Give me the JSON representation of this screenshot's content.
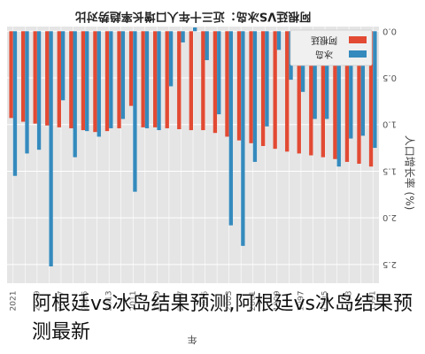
{
  "caption": "阿根廷vs冰岛结果预测,阿根廷vs冰岛结果预测最新",
  "chart_data": {
    "type": "bar",
    "title": "阿根廷VS冰岛：近三十年人口增长率趋势对比",
    "ylabel": "人口增长率 (%)",
    "xlabel": "年",
    "ylim": [
      -0.05,
      2.7
    ],
    "yticks": [
      0.0,
      0.5,
      1.0,
      1.5,
      2.0,
      2.5
    ],
    "ytick_labels": [
      "0.0",
      "0.5",
      "1.0",
      "1.5",
      "2.0",
      "2.5"
    ],
    "grid": true,
    "legend_position": "top-right",
    "background": "#e5e5e5",
    "categories": [
      "1991",
      "1992",
      "1993",
      "1994",
      "1995",
      "1996",
      "1997",
      "1998",
      "1999",
      "2000",
      "2001",
      "2002",
      "2003",
      "2004",
      "2005",
      "2006",
      "2007",
      "2008",
      "2009",
      "2010",
      "2011",
      "2012",
      "2013",
      "2014",
      "2015",
      "2016",
      "2017",
      "2018",
      "2019",
      "2020",
      "2021"
    ],
    "xtick_labels": [
      "1991",
      "1993",
      "1995",
      "1997",
      "1999",
      "2001",
      "2003",
      "2005",
      "2007",
      "2009",
      "2011",
      "2013",
      "2015",
      "2017",
      "2019",
      "2021"
    ],
    "series": [
      {
        "name": "阿根廷",
        "color": "#e24a33",
        "values": [
          1.45,
          1.42,
          1.4,
          1.37,
          1.35,
          1.33,
          1.31,
          1.29,
          1.26,
          1.23,
          1.2,
          1.17,
          1.13,
          1.09,
          1.06,
          1.06,
          1.05,
          1.04,
          1.03,
          1.03,
          0.8,
          1.04,
          1.07,
          1.08,
          1.06,
          1.04,
          1.03,
          1.01,
          0.99,
          0.97,
          0.93
        ]
      },
      {
        "name": "冰岛",
        "color": "#348abd",
        "values": [
          1.25,
          1.12,
          1.15,
          1.45,
          0.94,
          0.94,
          0.65,
          0.52,
          0.2,
          1.02,
          1.4,
          2.3,
          2.08,
          0.89,
          0.31,
          -0.04,
          0.12,
          0.59,
          1.06,
          1.04,
          1.72,
          0.94,
          1.04,
          1.13,
          1.07,
          1.35,
          0.74,
          2.52,
          1.27,
          1.31,
          1.55
        ]
      }
    ]
  }
}
